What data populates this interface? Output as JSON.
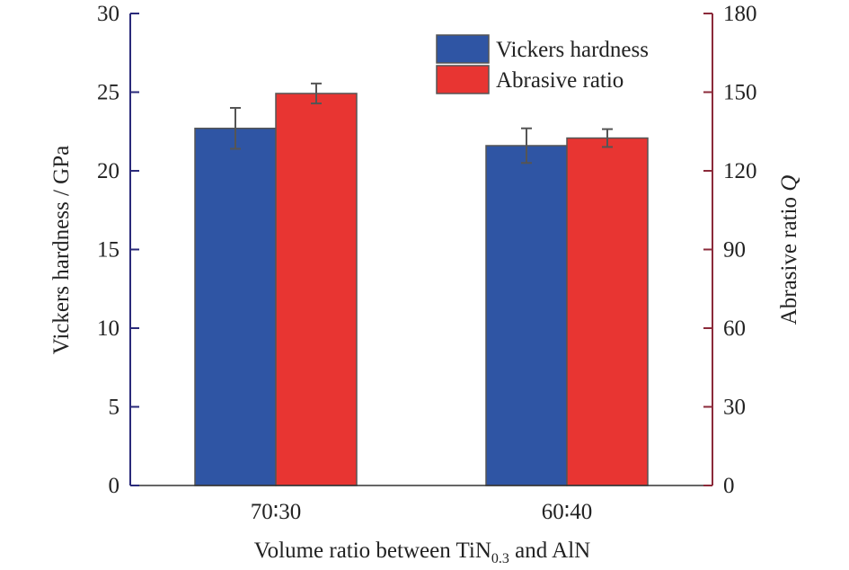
{
  "chart_data": {
    "type": "bar",
    "categories": [
      "70∶30",
      "60∶40"
    ],
    "xlabel": {
      "main": "Volume ratio between TiN",
      "subscript": "0.3",
      "tail": " and AlN"
    },
    "left_axis": {
      "label": "Vickers hardness / GPa",
      "range": [
        0,
        30
      ],
      "ticks": [
        "0",
        "5",
        "10",
        "15",
        "20",
        "25",
        "30"
      ],
      "color": "#2a2a7a"
    },
    "right_axis": {
      "label": "Abrasive ratio ",
      "label_italic": "Q",
      "range": [
        0,
        180
      ],
      "ticks": [
        "0",
        "30",
        "60",
        "90",
        "120",
        "150",
        "180"
      ],
      "color": "#8b2a3a"
    },
    "series": [
      {
        "name": "Vickers hardness",
        "axis": "left",
        "color": "#2f55a4",
        "values": [
          22.7,
          21.6
        ],
        "errors": [
          1.3,
          1.1
        ]
      },
      {
        "name": "Abrasive ratio",
        "axis": "right",
        "color": "#e83532",
        "values": [
          149.5,
          132.5
        ],
        "errors": [
          3.8,
          3.4
        ]
      }
    ],
    "legend_position": "top-right",
    "grid": false
  }
}
